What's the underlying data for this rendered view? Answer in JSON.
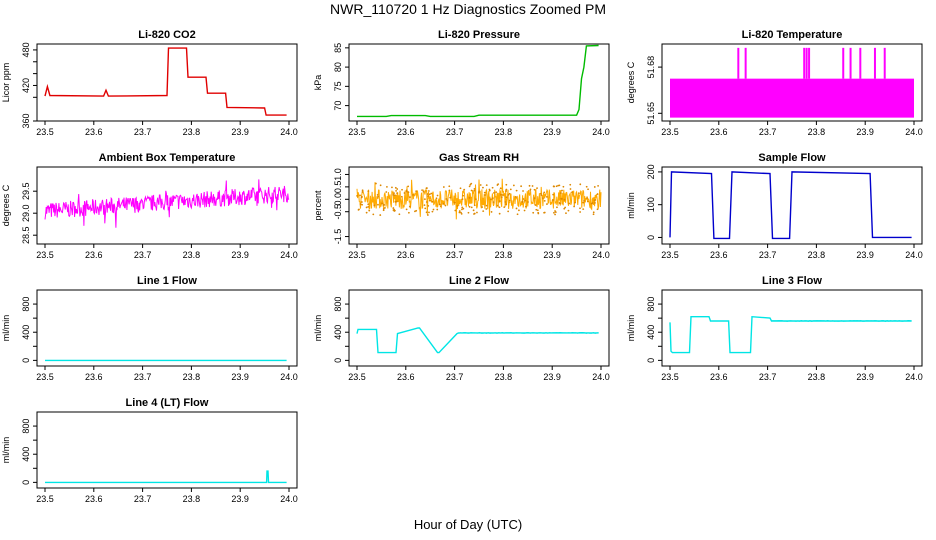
{
  "title": "NWR_110720  1 Hz Diagnostics Zoomed PM",
  "xlabel": "Hour of Day (UTC)",
  "chart_data": [
    {
      "type": "line",
      "title": "Li-820 CO2",
      "ylabel": "Licor ppm",
      "color": "#e00000",
      "xlim": [
        23.5,
        24.0
      ],
      "ylim": [
        360,
        490
      ],
      "xticks": [
        "23.5",
        "23.6",
        "23.7",
        "23.8",
        "23.9",
        "24.0"
      ],
      "yticks": [
        360,
        400,
        420,
        440,
        460,
        480
      ],
      "ytick_labels": [
        "360",
        "",
        "420",
        "",
        "",
        "480"
      ],
      "series": [
        {
          "name": "CO2",
          "x": [
            23.5,
            23.505,
            23.51,
            23.62,
            23.625,
            23.63,
            23.75,
            23.753,
            23.79,
            23.793,
            23.83,
            23.833,
            23.87,
            23.873,
            23.95,
            23.953,
            23.995
          ],
          "y": [
            402,
            418,
            403,
            402,
            412,
            402,
            403,
            483,
            483,
            434,
            434,
            407,
            407,
            383,
            382,
            370,
            370
          ]
        }
      ]
    },
    {
      "type": "line",
      "title": "Li-820 Pressure",
      "ylabel": "kPa",
      "color": "#00bb00",
      "xlim": [
        23.5,
        24.0
      ],
      "ylim": [
        66,
        86
      ],
      "xticks": [
        "23.5",
        "23.6",
        "23.7",
        "23.8",
        "23.9",
        "24.0"
      ],
      "yticks": [
        70,
        75,
        80,
        85
      ],
      "ytick_labels": [
        "70",
        "75",
        "80",
        "85"
      ],
      "series": [
        {
          "name": "Pressure",
          "x": [
            23.5,
            23.56,
            23.57,
            23.64,
            23.65,
            23.74,
            23.75,
            23.95,
            23.955,
            23.96,
            23.965,
            23.97,
            23.995
          ],
          "y": [
            67.2,
            67.2,
            67.4,
            67.4,
            67.2,
            67.2,
            67.5,
            67.5,
            69,
            77,
            80,
            85.5,
            85.6
          ]
        }
      ]
    },
    {
      "type": "line",
      "title": "Li-820 Temperature",
      "ylabel": "degrees C",
      "color": "#ff00ff",
      "xlim": [
        23.5,
        24.0
      ],
      "ylim": [
        51.645,
        51.695
      ],
      "xticks": [
        "23.5",
        "23.6",
        "23.7",
        "23.8",
        "23.9",
        "24.0"
      ],
      "yticks": [
        51.65,
        51.68
      ],
      "ytick_labels": [
        "51.65",
        "51.68"
      ],
      "series": [
        {
          "name": "Temperature",
          "band": [
            51.6475,
            51.6725
          ],
          "spike_top": 51.6925,
          "spikes": [
            23.64,
            23.655,
            23.775,
            23.78,
            23.785,
            23.855,
            23.87,
            23.89,
            23.92,
            23.94
          ]
        }
      ]
    },
    {
      "type": "line",
      "title": "Ambient Box Temperature",
      "ylabel": "degrees C",
      "color": "#ff00ff",
      "xlim": [
        23.5,
        24.0
      ],
      "ylim": [
        28.3,
        30.05
      ],
      "xticks": [
        "23.5",
        "23.6",
        "23.7",
        "23.8",
        "23.9",
        "24.0"
      ],
      "yticks": [
        28.5,
        29.0,
        29.5
      ],
      "ytick_labels": [
        "28.5",
        "29.0",
        "29.5"
      ],
      "series": [
        {
          "name": "Ambient",
          "x": [
            23.5,
            24.0
          ],
          "y": [
            29.05,
            29.45
          ],
          "noise": 0.38
        }
      ]
    },
    {
      "type": "line",
      "title": "Gas Stream RH",
      "ylabel": "percent",
      "color": "#ffaa00",
      "xlim": [
        23.5,
        24.0
      ],
      "ylim": [
        -1.8,
        1.3
      ],
      "xticks": [
        "23.5",
        "23.6",
        "23.7",
        "23.8",
        "23.9",
        "24.0"
      ],
      "yticks": [
        -1.5,
        -0.5,
        0.0,
        0.5,
        1.0
      ],
      "ytick_labels": [
        "-1.5",
        "-0.5",
        "0.0",
        "0.5",
        "1.0"
      ],
      "series": [
        {
          "name": "RH",
          "x": [
            23.5,
            24.0
          ],
          "y": [
            0.0,
            0.0
          ],
          "noise": 0.8
        }
      ]
    },
    {
      "type": "line",
      "title": "Sample Flow",
      "ylabel": "ml/min",
      "color": "#0000cc",
      "xlim": [
        23.5,
        24.0
      ],
      "ylim": [
        -20,
        215
      ],
      "xticks": [
        "23.5",
        "23.6",
        "23.7",
        "23.8",
        "23.9",
        "24.0"
      ],
      "yticks": [
        0,
        100,
        200
      ],
      "ytick_labels": [
        "0",
        "100",
        "200"
      ],
      "series": [
        {
          "name": "Sample",
          "x": [
            23.5,
            23.503,
            23.585,
            23.59,
            23.622,
            23.627,
            23.705,
            23.71,
            23.745,
            23.75,
            23.91,
            23.915,
            23.995
          ],
          "y": [
            0,
            200,
            195,
            -3,
            -3,
            200,
            195,
            -3,
            -3,
            200,
            195,
            0,
            0
          ]
        }
      ]
    },
    {
      "type": "line",
      "title": "Line 1 Flow",
      "ylabel": "ml/min",
      "color": "#00e5e5",
      "xlim": [
        23.5,
        24.0
      ],
      "ylim": [
        -80,
        1000
      ],
      "xticks": [
        "23.5",
        "23.6",
        "23.7",
        "23.8",
        "23.9",
        "24.0"
      ],
      "yticks": [
        0,
        200,
        400,
        600,
        800
      ],
      "ytick_labels": [
        "0",
        "",
        "400",
        "",
        "800"
      ],
      "series": [
        {
          "name": "Line 1",
          "x": [
            23.5,
            23.995
          ],
          "y": [
            0,
            0
          ]
        }
      ]
    },
    {
      "type": "line",
      "title": "Line 2 Flow",
      "ylabel": "ml/min",
      "color": "#00e5e5",
      "xlim": [
        23.5,
        24.0
      ],
      "ylim": [
        -80,
        1000
      ],
      "xticks": [
        "23.5",
        "23.6",
        "23.7",
        "23.8",
        "23.9",
        "24.0"
      ],
      "yticks": [
        0,
        200,
        400,
        600,
        800
      ],
      "ytick_labels": [
        "0",
        "",
        "400",
        "",
        "800"
      ],
      "series": [
        {
          "name": "Line 2",
          "x": [
            23.5,
            23.502,
            23.54,
            23.543,
            23.58,
            23.583,
            23.625,
            23.628,
            23.665,
            23.668,
            23.705,
            23.708,
            23.995
          ],
          "y": [
            380,
            440,
            440,
            110,
            110,
            380,
            460,
            460,
            110,
            110,
            380,
            390,
            390
          ]
        }
      ]
    },
    {
      "type": "line",
      "title": "Line 3 Flow",
      "ylabel": "ml/min",
      "color": "#00e5e5",
      "xlim": [
        23.5,
        24.0
      ],
      "ylim": [
        -80,
        1000
      ],
      "xticks": [
        "23.5",
        "23.6",
        "23.7",
        "23.8",
        "23.9",
        "24.0"
      ],
      "yticks": [
        0,
        200,
        400,
        600,
        800
      ],
      "ytick_labels": [
        "0",
        "",
        "400",
        "",
        "800"
      ],
      "series": [
        {
          "name": "Line 3",
          "x": [
            23.5,
            23.502,
            23.505,
            23.54,
            23.543,
            23.58,
            23.583,
            23.62,
            23.623,
            23.665,
            23.668,
            23.705,
            23.708,
            23.995
          ],
          "y": [
            540,
            130,
            110,
            110,
            620,
            620,
            560,
            560,
            110,
            110,
            620,
            600,
            560,
            560
          ]
        }
      ]
    },
    {
      "type": "line",
      "title": "Line 4 (LT) Flow",
      "ylabel": "ml/min",
      "color": "#00e5e5",
      "xlim": [
        23.5,
        24.0
      ],
      "ylim": [
        -80,
        1000
      ],
      "xticks": [
        "23.5",
        "23.6",
        "23.7",
        "23.8",
        "23.9",
        "24.0"
      ],
      "yticks": [
        0,
        200,
        400,
        600,
        800
      ],
      "ytick_labels": [
        "0",
        "",
        "400",
        "",
        "800"
      ],
      "series": [
        {
          "name": "Line 4",
          "x": [
            23.5,
            23.954,
            23.955,
            23.957,
            23.958,
            23.995
          ],
          "y": [
            0,
            0,
            160,
            160,
            0,
            0
          ]
        }
      ]
    }
  ]
}
